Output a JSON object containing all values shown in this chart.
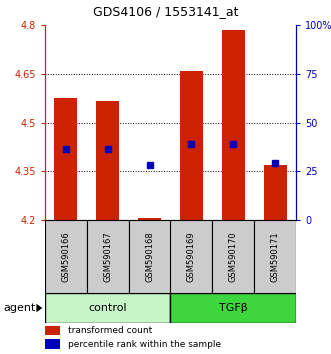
{
  "title": "GDS4106 / 1553141_at",
  "samples": [
    "GSM590166",
    "GSM590167",
    "GSM590168",
    "GSM590169",
    "GSM590170",
    "GSM590171"
  ],
  "red_values": [
    4.575,
    4.565,
    4.207,
    4.66,
    4.785,
    4.37
  ],
  "blue_values": [
    4.42,
    4.42,
    4.37,
    4.435,
    4.435,
    4.375
  ],
  "y_min": 4.2,
  "y_max": 4.8,
  "y_ticks_left": [
    4.2,
    4.35,
    4.5,
    4.65,
    4.8
  ],
  "y_ticks_right": [
    0,
    25,
    50,
    75,
    100
  ],
  "y_ticks_right_labels": [
    "0",
    "25",
    "50",
    "75",
    "100%"
  ],
  "groups": [
    {
      "label": "control",
      "indices": [
        0,
        1,
        2
      ],
      "color": "#c8f5c8"
    },
    {
      "label": "TGFβ",
      "indices": [
        3,
        4,
        5
      ],
      "color": "#3dd63d"
    }
  ],
  "bar_color": "#cc2200",
  "blue_color": "#0000bb",
  "bar_width": 0.55,
  "blue_marker_size": 5,
  "background_label": "#cccccc",
  "agent_label": "agent",
  "legend_red": "transformed count",
  "legend_blue": "percentile rank within the sample"
}
